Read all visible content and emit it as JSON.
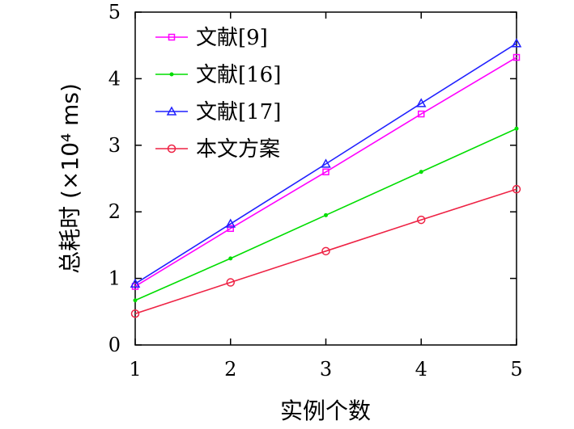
{
  "chart_data": {
    "type": "line",
    "title": "",
    "xlabel": "实例个数",
    "ylabel": "总耗时 (×10⁴ ms)",
    "x": [
      1,
      2,
      3,
      4,
      5
    ],
    "xlim": [
      1,
      5
    ],
    "ylim": [
      0,
      5
    ],
    "xticks": [
      "1",
      "2",
      "3",
      "4",
      "5"
    ],
    "yticks": [
      "0",
      "1",
      "2",
      "3",
      "4",
      "5"
    ],
    "grid": false,
    "legend_position": "top-left",
    "series": [
      {
        "name": "文献[9]",
        "values": [
          0.88,
          1.75,
          2.6,
          3.47,
          4.32
        ],
        "color": "#ff00ff",
        "marker": "square"
      },
      {
        "name": "文献[16]",
        "values": [
          0.67,
          1.3,
          1.95,
          2.6,
          3.25
        ],
        "color": "#00dd00",
        "marker": "dot"
      },
      {
        "name": "文献[17]",
        "values": [
          0.92,
          1.82,
          2.72,
          3.63,
          4.53
        ],
        "color": "#2020ff",
        "marker": "triangle"
      },
      {
        "name": "本文方案",
        "values": [
          0.47,
          0.94,
          1.41,
          1.88,
          2.34
        ],
        "color": "#ee2244",
        "marker": "circle"
      }
    ]
  }
}
